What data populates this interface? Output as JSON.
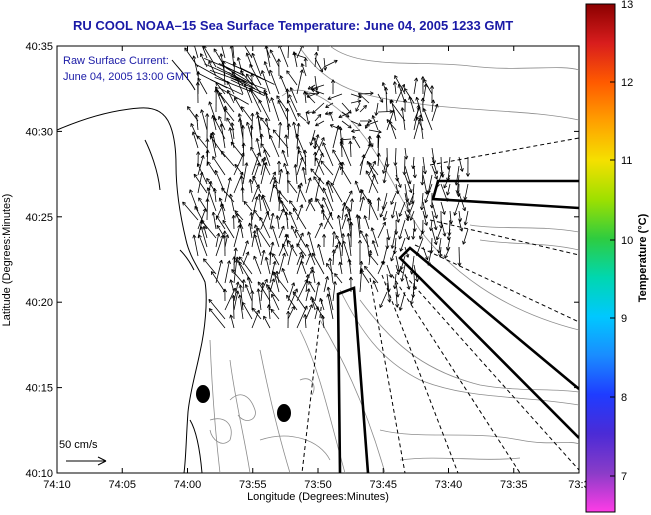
{
  "title": "RU COOL  NOAA–15  Sea Surface Temperature:  June 04, 2005 1233 GMT",
  "legend": {
    "line1": "Raw Surface Current:",
    "line2": "June 04, 2005 13:00 GMT",
    "scale_label": "50 cm/s"
  },
  "axes": {
    "xlabel": "Longitude (Degrees:Minutes)",
    "ylabel": "Latitude (Degrees:Minutes)",
    "x_ticks": [
      "74:10",
      "74:05",
      "74:00",
      "73:55",
      "73:50",
      "73:45",
      "73:40",
      "73:35",
      "73:3"
    ],
    "y_ticks": [
      "40:35",
      "40:30",
      "40:25",
      "40:20",
      "40:15",
      "40:10"
    ]
  },
  "colorbar": {
    "title": "Temperature (°C)",
    "ticks": [
      "13",
      "12",
      "11",
      "10",
      "9",
      "8",
      "7"
    ],
    "colors": [
      "#8b0000",
      "#d81d1d",
      "#ff5a00",
      "#ffa000",
      "#f5e000",
      "#9ee000",
      "#2ecc40",
      "#00d7b0",
      "#00c8ff",
      "#1a8cff",
      "#1f3cff",
      "#4b2bd6",
      "#8a3cc8",
      "#ff3ce6"
    ]
  }
}
